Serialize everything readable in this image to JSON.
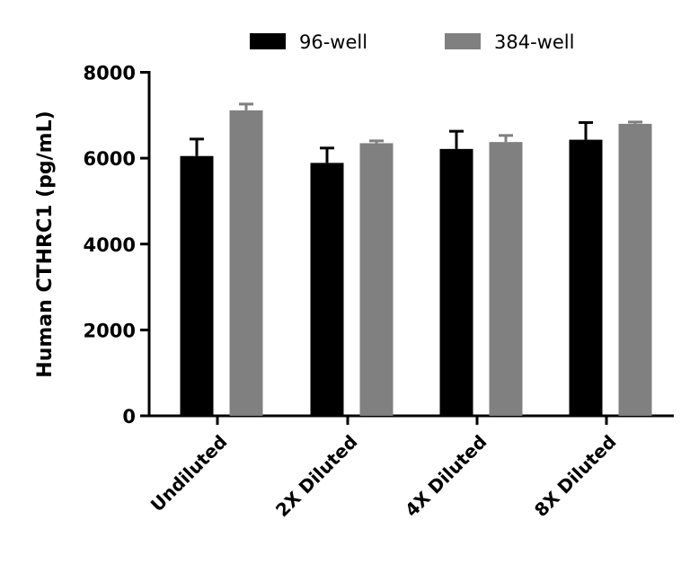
{
  "chart_data": {
    "type": "bar",
    "title": "",
    "xlabel": "",
    "ylabel": "Human CTHRC1 (pg/mL)",
    "ylim": [
      0,
      8000
    ],
    "yticks": [
      0,
      2000,
      4000,
      6000,
      8000
    ],
    "grid": false,
    "legend_position": "top",
    "categories": [
      "Undiluted",
      "2X Diluted",
      "4X Diluted",
      "8X Diluted"
    ],
    "series": [
      {
        "name": "96-well",
        "color": "#000000",
        "values": [
          6050,
          5890,
          6215,
          6430
        ],
        "error_upper": [
          6445,
          6236,
          6627,
          6830
        ]
      },
      {
        "name": "384-well",
        "color": "#808080",
        "values": [
          7114,
          6349,
          6376,
          6800
        ],
        "error_upper": [
          7260,
          6403,
          6529,
          6842
        ]
      }
    ]
  }
}
